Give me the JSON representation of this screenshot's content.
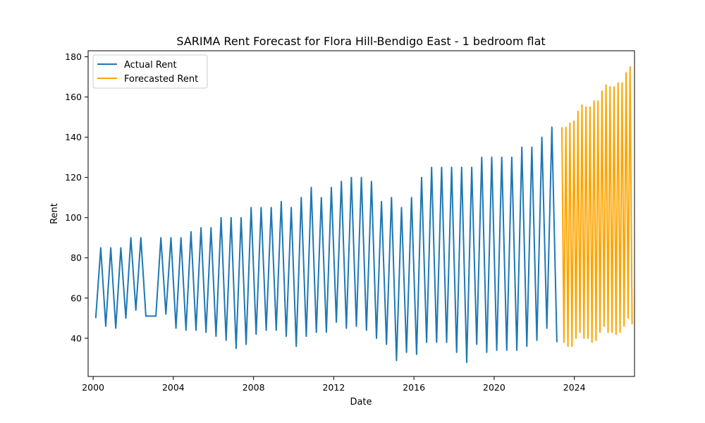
{
  "chart_data": {
    "type": "line",
    "title": "SARIMA Rent Forecast for Flora Hill-Bendigo East - 1 bedroom flat",
    "xlabel": "Date",
    "ylabel": "Rent",
    "xlim": [
      1999.75,
      2027.0
    ],
    "ylim": [
      21,
      183
    ],
    "x_ticks": [
      2000,
      2004,
      2008,
      2012,
      2016,
      2020,
      2024
    ],
    "x_tick_labels": [
      "2000",
      "2004",
      "2008",
      "2012",
      "2016",
      "2020",
      "2024"
    ],
    "y_ticks": [
      40,
      60,
      80,
      100,
      120,
      140,
      160,
      180
    ],
    "y_tick_labels": [
      "40",
      "60",
      "80",
      "100",
      "120",
      "140",
      "160",
      "180"
    ],
    "grid": false,
    "legend_position": "top-left",
    "series": [
      {
        "name": "Actual Rent",
        "color": "#1f77b4",
        "points": [
          [
            2000.13,
            50
          ],
          [
            2000.38,
            85
          ],
          [
            2000.63,
            46
          ],
          [
            2000.88,
            85
          ],
          [
            2001.13,
            45
          ],
          [
            2001.38,
            85
          ],
          [
            2001.63,
            50
          ],
          [
            2001.88,
            90
          ],
          [
            2002.13,
            54
          ],
          [
            2002.38,
            90
          ],
          [
            2002.63,
            51
          ],
          [
            2002.88,
            51
          ],
          [
            2003.13,
            51
          ],
          [
            2003.38,
            90
          ],
          [
            2003.63,
            52
          ],
          [
            2003.88,
            90
          ],
          [
            2004.13,
            45
          ],
          [
            2004.38,
            90
          ],
          [
            2004.63,
            44
          ],
          [
            2004.88,
            93
          ],
          [
            2005.13,
            44
          ],
          [
            2005.38,
            95
          ],
          [
            2005.63,
            43
          ],
          [
            2005.88,
            95
          ],
          [
            2006.13,
            41
          ],
          [
            2006.38,
            100
          ],
          [
            2006.63,
            39
          ],
          [
            2006.88,
            100
          ],
          [
            2007.13,
            35
          ],
          [
            2007.38,
            100
          ],
          [
            2007.63,
            37
          ],
          [
            2007.88,
            105
          ],
          [
            2008.13,
            42
          ],
          [
            2008.38,
            105
          ],
          [
            2008.63,
            44
          ],
          [
            2008.88,
            105
          ],
          [
            2009.13,
            44
          ],
          [
            2009.38,
            108
          ],
          [
            2009.63,
            41
          ],
          [
            2009.88,
            105
          ],
          [
            2010.13,
            36
          ],
          [
            2010.38,
            110
          ],
          [
            2010.63,
            41
          ],
          [
            2010.88,
            115
          ],
          [
            2011.13,
            43
          ],
          [
            2011.38,
            110
          ],
          [
            2011.63,
            43
          ],
          [
            2011.88,
            115
          ],
          [
            2012.13,
            48
          ],
          [
            2012.38,
            118
          ],
          [
            2012.63,
            45
          ],
          [
            2012.88,
            120
          ],
          [
            2013.13,
            46
          ],
          [
            2013.38,
            120
          ],
          [
            2013.63,
            44
          ],
          [
            2013.88,
            118
          ],
          [
            2014.13,
            40
          ],
          [
            2014.38,
            108
          ],
          [
            2014.63,
            37
          ],
          [
            2014.88,
            110
          ],
          [
            2015.13,
            29
          ],
          [
            2015.38,
            105
          ],
          [
            2015.63,
            33
          ],
          [
            2015.88,
            110
          ],
          [
            2016.13,
            32
          ],
          [
            2016.38,
            120
          ],
          [
            2016.63,
            38
          ],
          [
            2016.88,
            125
          ],
          [
            2017.13,
            38
          ],
          [
            2017.38,
            125
          ],
          [
            2017.63,
            38
          ],
          [
            2017.88,
            125
          ],
          [
            2018.13,
            33
          ],
          [
            2018.38,
            125
          ],
          [
            2018.63,
            28
          ],
          [
            2018.88,
            125
          ],
          [
            2019.13,
            37
          ],
          [
            2019.38,
            130
          ],
          [
            2019.63,
            33
          ],
          [
            2019.88,
            130
          ],
          [
            2020.13,
            34
          ],
          [
            2020.38,
            130
          ],
          [
            2020.63,
            34
          ],
          [
            2020.88,
            130
          ],
          [
            2021.13,
            34
          ],
          [
            2021.38,
            135
          ],
          [
            2021.63,
            36
          ],
          [
            2021.88,
            135
          ],
          [
            2022.13,
            39
          ],
          [
            2022.38,
            140
          ],
          [
            2022.63,
            45
          ],
          [
            2022.88,
            145
          ],
          [
            2023.13,
            38
          ]
        ]
      },
      {
        "name": "Forecasted Rent",
        "color": "#ffa500",
        "points": [
          [
            2023.38,
            145
          ],
          [
            2023.48,
            38
          ],
          [
            2023.58,
            145
          ],
          [
            2023.68,
            36
          ],
          [
            2023.78,
            147
          ],
          [
            2023.88,
            36
          ],
          [
            2023.98,
            148
          ],
          [
            2024.08,
            40
          ],
          [
            2024.18,
            153
          ],
          [
            2024.28,
            43
          ],
          [
            2024.38,
            156
          ],
          [
            2024.48,
            40
          ],
          [
            2024.58,
            155
          ],
          [
            2024.68,
            40
          ],
          [
            2024.78,
            155
          ],
          [
            2024.88,
            38
          ],
          [
            2024.98,
            158
          ],
          [
            2025.08,
            39
          ],
          [
            2025.18,
            158
          ],
          [
            2025.28,
            43
          ],
          [
            2025.38,
            163
          ],
          [
            2025.48,
            46
          ],
          [
            2025.58,
            166
          ],
          [
            2025.68,
            43
          ],
          [
            2025.78,
            165
          ],
          [
            2025.88,
            43
          ],
          [
            2025.98,
            165
          ],
          [
            2026.08,
            42
          ],
          [
            2026.18,
            167
          ],
          [
            2026.28,
            43
          ],
          [
            2026.38,
            167
          ],
          [
            2026.48,
            46
          ],
          [
            2026.58,
            172
          ],
          [
            2026.68,
            50
          ],
          [
            2026.78,
            175
          ],
          [
            2026.88,
            47
          ]
        ]
      }
    ]
  }
}
